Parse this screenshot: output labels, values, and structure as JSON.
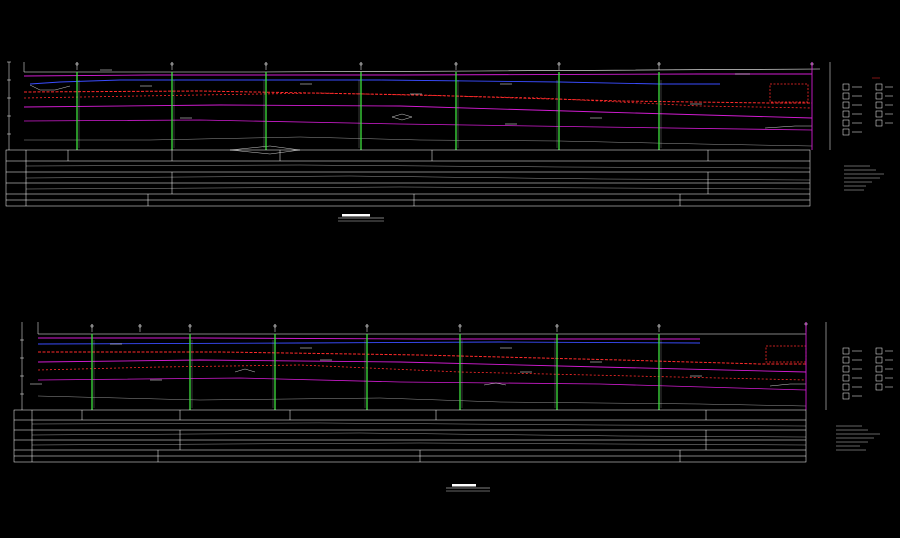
{
  "drawing": {
    "background": "#000000",
    "colors": {
      "frame": "#ffffff",
      "magenta": "#d21cd2",
      "red": "#ff2a2a",
      "blue": "#3a4cff",
      "green": "#3fe23f",
      "cyan": "#7fd7ff",
      "yellow": "#ffff4a",
      "grey": "#bdbdbd"
    },
    "upper_profile": {
      "name": "upper-profile-section"
    },
    "lower_profile": {
      "name": "lower-profile-section"
    }
  }
}
